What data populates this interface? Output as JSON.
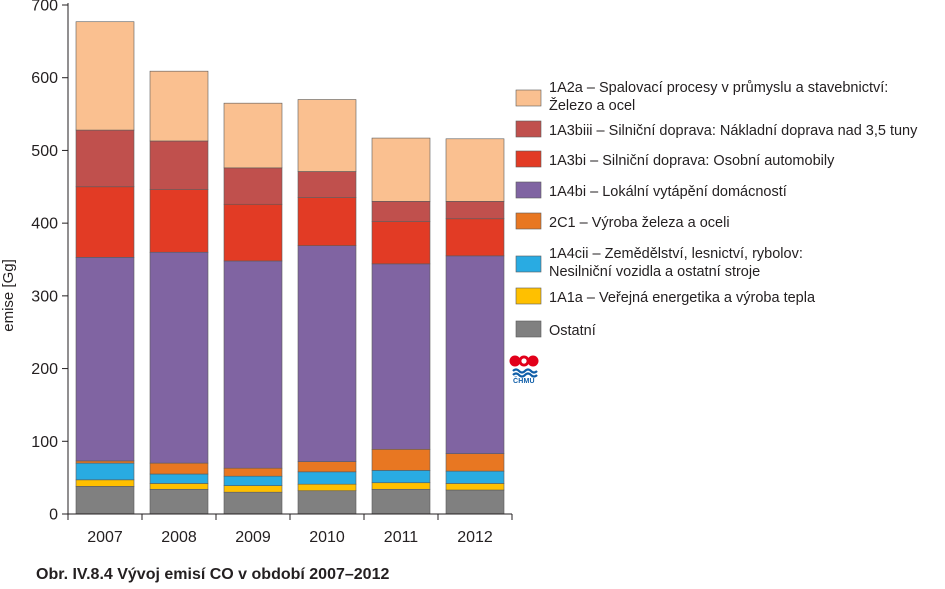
{
  "chart_data": {
    "type": "bar",
    "stacked": true,
    "categories": [
      "2007",
      "2008",
      "2009",
      "2010",
      "2011",
      "2012"
    ],
    "ylabel": "emise [Gg]",
    "ylim": [
      0,
      700
    ],
    "yticks": [
      0,
      100,
      200,
      300,
      400,
      500,
      600,
      700
    ],
    "legend_position": "right",
    "series": [
      {
        "name": "Ostatní",
        "color": "#808080",
        "values": [
          38,
          34,
          30,
          32,
          34,
          33
        ]
      },
      {
        "name": "1A1a – Veřejná energetika a výroba tepla",
        "color": "#ffc000",
        "values": [
          9,
          8,
          9,
          9,
          9,
          9
        ]
      },
      {
        "name": "1A4cii – Zemědělství, lesnictví, rybolov:|Nesilniční vozidla a ostatní stroje",
        "color": "#29abe2",
        "values": [
          23,
          13,
          13,
          17,
          17,
          17
        ]
      },
      {
        "name": "2C1 – Výroba železa a oceli",
        "color": "#e87722",
        "values": [
          3,
          15,
          11,
          14,
          29,
          24
        ]
      },
      {
        "name": "1A4bi  – Lokální vytápění domácností",
        "color": "#8064a2",
        "values": [
          280,
          290,
          285,
          297,
          255,
          272
        ]
      },
      {
        "name": "1A3bi – Silniční doprava: Osobní automobily",
        "color": "#e23b25",
        "values": [
          97,
          86,
          78,
          66,
          58,
          51
        ]
      },
      {
        "name": "1A3biii – Silniční doprava: Nákladní doprava nad 3,5 tuny",
        "color": "#c0504d",
        "values": [
          78,
          67,
          50,
          36,
          28,
          24
        ]
      },
      {
        "name": "1A2a – Spalovací procesy v průmyslu a stavebnictví:|Železo a ocel",
        "color": "#fac090",
        "values": [
          149,
          96,
          89,
          99,
          87,
          86
        ]
      }
    ]
  },
  "caption": "Obr. IV.8.4  Vývoj emisí CO v období 2007–2012",
  "logo": {
    "text": "ČHMÚ",
    "colors": [
      "#e2001a",
      "#0f5ea8"
    ]
  }
}
